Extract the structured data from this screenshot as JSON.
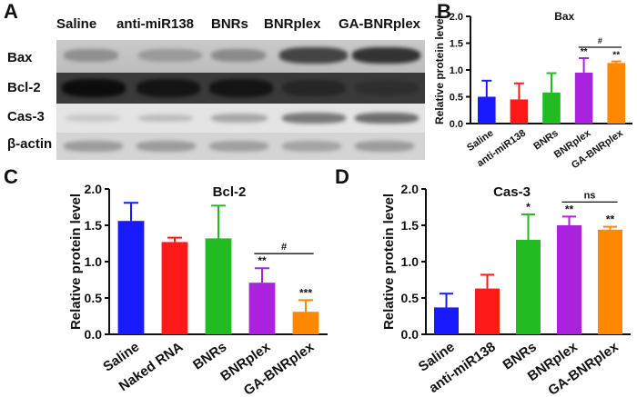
{
  "panels": {
    "a": "A",
    "b": "B",
    "c": "C",
    "d": "D"
  },
  "blot": {
    "lanes": [
      "Saline",
      "anti-miR138",
      "BNRs",
      "BNRplex",
      "GA-BNRplex"
    ],
    "rows": [
      "Bax",
      "Bcl-2",
      "Cas-3",
      "β-actin"
    ]
  },
  "chart_data": [
    {
      "type": "bar",
      "title": "Bax",
      "ylabel": "Relative protein level",
      "xlabel": "",
      "categories": [
        "Saline",
        "anti-miR138",
        "BNRs",
        "BNRplex",
        "GA-BNRplex"
      ],
      "values": [
        0.5,
        0.45,
        0.58,
        0.95,
        1.13
      ],
      "errors": [
        0.3,
        0.3,
        0.36,
        0.27,
        0.03
      ],
      "colors": [
        "#1a1aff",
        "#ff1a1a",
        "#22bb22",
        "#aa22dd",
        "#ff8800"
      ],
      "significance": [
        "",
        "",
        "",
        "**",
        "**"
      ],
      "bracket": {
        "from": 3,
        "to": 4,
        "label": "#"
      },
      "ylim": [
        0,
        2.0
      ],
      "yticks": [
        "0.0",
        "0.5",
        "1.0",
        "1.5",
        "2.0"
      ]
    },
    {
      "type": "bar",
      "title": "Bcl-2",
      "ylabel": "Relative protein level",
      "xlabel": "",
      "categories": [
        "Saline",
        "Naked RNA",
        "BNRs",
        "BNRplex",
        "GA-BNRplex"
      ],
      "values": [
        1.56,
        1.27,
        1.32,
        0.71,
        0.31
      ],
      "errors": [
        0.25,
        0.06,
        0.45,
        0.2,
        0.16
      ],
      "colors": [
        "#1a1aff",
        "#ff1a1a",
        "#22bb22",
        "#aa22dd",
        "#ff8800"
      ],
      "significance": [
        "",
        "",
        "",
        "**",
        "***"
      ],
      "bracket": {
        "from": 3,
        "to": 4,
        "label": "#"
      },
      "ylim": [
        0,
        2.0
      ],
      "yticks": [
        "0.0",
        "0.5",
        "1.0",
        "1.5",
        "2.0"
      ]
    },
    {
      "type": "bar",
      "title": "Cas-3",
      "ylabel": "Relative protein level",
      "xlabel": "",
      "categories": [
        "Saline",
        "anti-miR138",
        "BNRs",
        "BNRplex",
        "GA-BNRplex"
      ],
      "values": [
        0.37,
        0.63,
        1.3,
        1.5,
        1.44
      ],
      "errors": [
        0.19,
        0.19,
        0.35,
        0.12,
        0.04
      ],
      "colors": [
        "#1a1aff",
        "#ff1a1a",
        "#22bb22",
        "#aa22dd",
        "#ff8800"
      ],
      "significance": [
        "",
        "",
        "*",
        "**",
        "**"
      ],
      "bracket": {
        "from": 3,
        "to": 4,
        "label": "ns"
      },
      "ylim": [
        0,
        2.0
      ],
      "yticks": [
        "0.0",
        "0.5",
        "1.0",
        "1.5",
        "2.0"
      ]
    }
  ]
}
